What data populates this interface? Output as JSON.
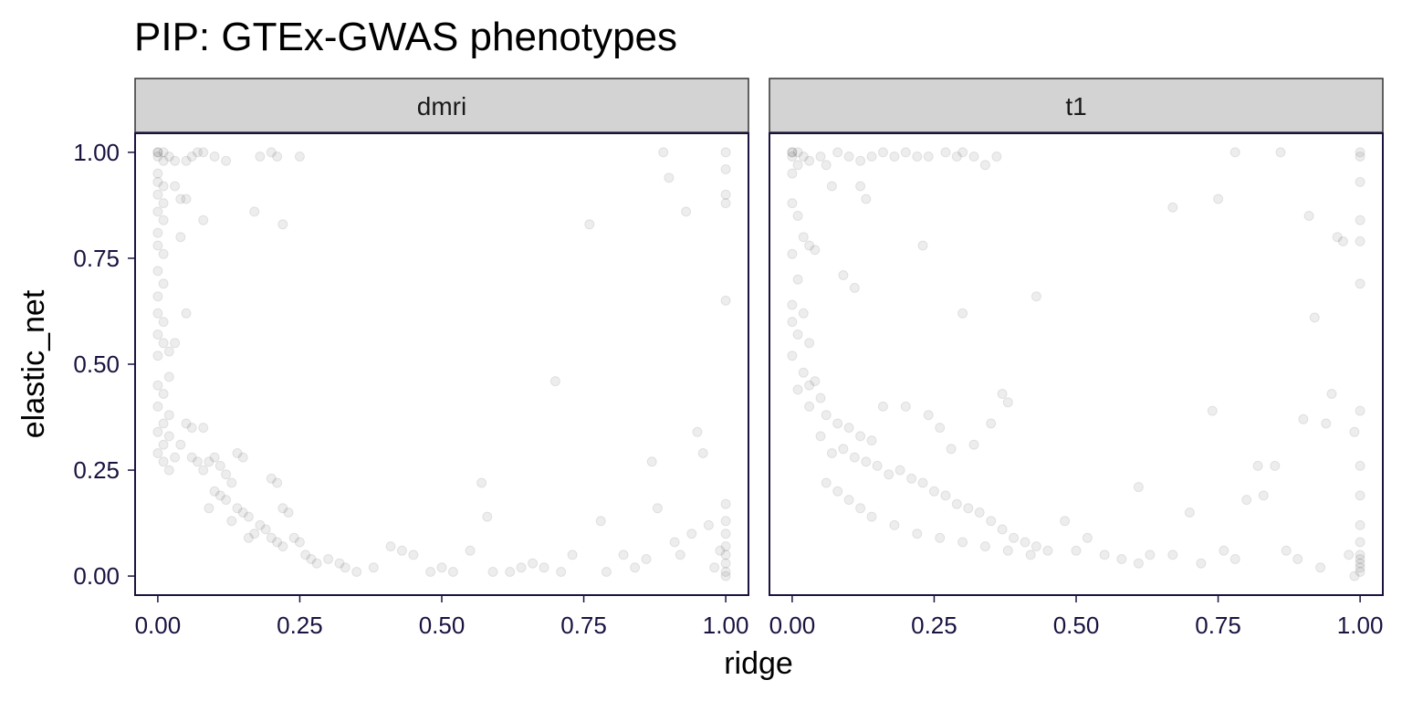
{
  "chart_data": {
    "type": "scatter",
    "title": "PIP: GTEx-GWAS phenotypes",
    "xlabel": "ridge",
    "ylabel": "elastic_net",
    "xlim": [
      -0.04,
      1.04
    ],
    "ylim": [
      -0.045,
      1.045
    ],
    "x_ticks": [
      "0.00",
      "0.25",
      "0.50",
      "0.75",
      "1.00"
    ],
    "y_ticks": [
      "0.00",
      "0.25",
      "0.50",
      "0.75",
      "1.00"
    ],
    "tick_values": [
      0,
      0.25,
      0.5,
      0.75,
      1.0
    ],
    "grid": false,
    "legend": "none",
    "point_color": "#000000",
    "point_alpha": 0.07,
    "panels": [
      {
        "name": "dmri",
        "points": [
          [
            0.0,
            1.0
          ],
          [
            0.0,
            1.0
          ],
          [
            0.01,
            1.0
          ],
          [
            0.0,
            0.99
          ],
          [
            0.01,
            0.98
          ],
          [
            0.0,
            0.95
          ],
          [
            0.0,
            0.93
          ],
          [
            0.01,
            0.92
          ],
          [
            0.0,
            0.9
          ],
          [
            0.01,
            0.88
          ],
          [
            0.0,
            0.86
          ],
          [
            0.01,
            0.84
          ],
          [
            0.0,
            0.81
          ],
          [
            0.0,
            0.78
          ],
          [
            0.01,
            0.76
          ],
          [
            0.0,
            0.72
          ],
          [
            0.01,
            0.69
          ],
          [
            0.0,
            0.66
          ],
          [
            0.0,
            0.62
          ],
          [
            0.01,
            0.6
          ],
          [
            0.0,
            0.57
          ],
          [
            0.01,
            0.55
          ],
          [
            0.0,
            0.52
          ],
          [
            0.02,
            0.53
          ],
          [
            0.03,
            0.55
          ],
          [
            0.02,
            0.47
          ],
          [
            0.0,
            0.45
          ],
          [
            0.01,
            0.43
          ],
          [
            0.0,
            0.4
          ],
          [
            0.02,
            0.38
          ],
          [
            0.01,
            0.36
          ],
          [
            0.0,
            0.34
          ],
          [
            0.02,
            0.33
          ],
          [
            0.01,
            0.31
          ],
          [
            0.0,
            0.29
          ],
          [
            0.03,
            0.28
          ],
          [
            0.01,
            0.27
          ],
          [
            0.02,
            0.25
          ],
          [
            0.05,
            0.36
          ],
          [
            0.04,
            0.31
          ],
          [
            0.06,
            0.28
          ],
          [
            0.07,
            0.27
          ],
          [
            0.08,
            0.25
          ],
          [
            0.09,
            0.27
          ],
          [
            0.1,
            0.28
          ],
          [
            0.11,
            0.26
          ],
          [
            0.12,
            0.24
          ],
          [
            0.14,
            0.29
          ],
          [
            0.15,
            0.28
          ],
          [
            0.13,
            0.22
          ],
          [
            0.1,
            0.2
          ],
          [
            0.11,
            0.19
          ],
          [
            0.12,
            0.18
          ],
          [
            0.09,
            0.16
          ],
          [
            0.14,
            0.16
          ],
          [
            0.15,
            0.15
          ],
          [
            0.16,
            0.14
          ],
          [
            0.13,
            0.13
          ],
          [
            0.2,
            0.23
          ],
          [
            0.21,
            0.22
          ],
          [
            0.22,
            0.16
          ],
          [
            0.23,
            0.15
          ],
          [
            0.18,
            0.12
          ],
          [
            0.19,
            0.11
          ],
          [
            0.17,
            0.1
          ],
          [
            0.2,
            0.09
          ],
          [
            0.21,
            0.08
          ],
          [
            0.16,
            0.09
          ],
          [
            0.24,
            0.09
          ],
          [
            0.25,
            0.08
          ],
          [
            0.22,
            0.07
          ],
          [
            0.26,
            0.05
          ],
          [
            0.27,
            0.04
          ],
          [
            0.28,
            0.03
          ],
          [
            0.3,
            0.04
          ],
          [
            0.32,
            0.03
          ],
          [
            0.33,
            0.02
          ],
          [
            0.35,
            0.01
          ],
          [
            0.38,
            0.02
          ],
          [
            0.41,
            0.07
          ],
          [
            0.43,
            0.06
          ],
          [
            0.45,
            0.05
          ],
          [
            0.48,
            0.01
          ],
          [
            0.5,
            0.02
          ],
          [
            0.52,
            0.01
          ],
          [
            0.55,
            0.06
          ],
          [
            0.57,
            0.22
          ],
          [
            0.58,
            0.14
          ],
          [
            0.59,
            0.01
          ],
          [
            0.62,
            0.01
          ],
          [
            0.64,
            0.02
          ],
          [
            0.66,
            0.03
          ],
          [
            0.68,
            0.02
          ],
          [
            0.7,
            0.46
          ],
          [
            0.71,
            0.01
          ],
          [
            0.73,
            0.05
          ],
          [
            0.76,
            0.83
          ],
          [
            0.78,
            0.13
          ],
          [
            0.79,
            0.01
          ],
          [
            0.82,
            0.05
          ],
          [
            0.84,
            0.02
          ],
          [
            0.86,
            0.04
          ],
          [
            0.87,
            0.27
          ],
          [
            0.88,
            0.16
          ],
          [
            0.89,
            1.0
          ],
          [
            0.9,
            0.94
          ],
          [
            0.91,
            0.08
          ],
          [
            0.92,
            0.05
          ],
          [
            0.93,
            0.86
          ],
          [
            0.94,
            0.1
          ],
          [
            0.95,
            0.34
          ],
          [
            0.96,
            0.29
          ],
          [
            0.97,
            0.12
          ],
          [
            0.98,
            0.02
          ],
          [
            0.99,
            0.06
          ],
          [
            1.0,
            1.0
          ],
          [
            1.0,
            0.96
          ],
          [
            1.0,
            0.9
          ],
          [
            1.0,
            0.88
          ],
          [
            1.0,
            0.65
          ],
          [
            1.0,
            0.17
          ],
          [
            1.0,
            0.13
          ],
          [
            1.0,
            0.1
          ],
          [
            1.0,
            0.07
          ],
          [
            1.0,
            0.05
          ],
          [
            1.0,
            0.03
          ],
          [
            1.0,
            0.01
          ],
          [
            1.0,
            0.0
          ],
          [
            0.02,
            0.99
          ],
          [
            0.03,
            0.98
          ],
          [
            0.05,
            0.98
          ],
          [
            0.06,
            0.99
          ],
          [
            0.07,
            1.0
          ],
          [
            0.08,
            1.0
          ],
          [
            0.1,
            0.99
          ],
          [
            0.12,
            0.98
          ],
          [
            0.18,
            0.99
          ],
          [
            0.2,
            1.0
          ],
          [
            0.21,
            0.99
          ],
          [
            0.25,
            0.99
          ],
          [
            0.03,
            0.92
          ],
          [
            0.04,
            0.89
          ],
          [
            0.05,
            0.89
          ],
          [
            0.08,
            0.84
          ],
          [
            0.17,
            0.86
          ],
          [
            0.22,
            0.83
          ],
          [
            0.04,
            0.8
          ],
          [
            0.05,
            0.62
          ],
          [
            0.06,
            0.35
          ],
          [
            0.08,
            0.35
          ]
        ]
      },
      {
        "name": "t1",
        "points": [
          [
            0.0,
            1.0
          ],
          [
            0.0,
            1.0
          ],
          [
            0.01,
            1.0
          ],
          [
            0.0,
            0.99
          ],
          [
            0.01,
            0.97
          ],
          [
            0.02,
            0.99
          ],
          [
            0.03,
            0.98
          ],
          [
            0.05,
            0.99
          ],
          [
            0.06,
            0.97
          ],
          [
            0.08,
            1.0
          ],
          [
            0.1,
            0.99
          ],
          [
            0.12,
            0.98
          ],
          [
            0.14,
            0.99
          ],
          [
            0.16,
            1.0
          ],
          [
            0.18,
            0.99
          ],
          [
            0.2,
            1.0
          ],
          [
            0.22,
            0.99
          ],
          [
            0.24,
            0.99
          ],
          [
            0.27,
            1.0
          ],
          [
            0.29,
            0.99
          ],
          [
            0.3,
            1.0
          ],
          [
            0.32,
            0.99
          ],
          [
            0.34,
            0.97
          ],
          [
            0.36,
            0.99
          ],
          [
            0.12,
            0.92
          ],
          [
            0.13,
            0.89
          ],
          [
            0.07,
            0.92
          ],
          [
            0.0,
            0.95
          ],
          [
            0.0,
            0.88
          ],
          [
            0.01,
            0.85
          ],
          [
            0.02,
            0.8
          ],
          [
            0.03,
            0.78
          ],
          [
            0.04,
            0.77
          ],
          [
            0.0,
            0.76
          ],
          [
            0.01,
            0.7
          ],
          [
            0.0,
            0.64
          ],
          [
            0.02,
            0.62
          ],
          [
            0.0,
            0.6
          ],
          [
            0.01,
            0.57
          ],
          [
            0.03,
            0.55
          ],
          [
            0.0,
            0.52
          ],
          [
            0.02,
            0.48
          ],
          [
            0.04,
            0.46
          ],
          [
            0.01,
            0.44
          ],
          [
            0.05,
            0.42
          ],
          [
            0.03,
            0.4
          ],
          [
            0.06,
            0.38
          ],
          [
            0.08,
            0.36
          ],
          [
            0.1,
            0.35
          ],
          [
            0.12,
            0.33
          ],
          [
            0.14,
            0.32
          ],
          [
            0.09,
            0.3
          ],
          [
            0.11,
            0.28
          ],
          [
            0.13,
            0.27
          ],
          [
            0.15,
            0.26
          ],
          [
            0.17,
            0.24
          ],
          [
            0.19,
            0.25
          ],
          [
            0.21,
            0.23
          ],
          [
            0.23,
            0.22
          ],
          [
            0.25,
            0.2
          ],
          [
            0.27,
            0.19
          ],
          [
            0.29,
            0.17
          ],
          [
            0.31,
            0.16
          ],
          [
            0.33,
            0.15
          ],
          [
            0.35,
            0.13
          ],
          [
            0.37,
            0.11
          ],
          [
            0.39,
            0.09
          ],
          [
            0.41,
            0.08
          ],
          [
            0.43,
            0.07
          ],
          [
            0.45,
            0.06
          ],
          [
            0.09,
            0.71
          ],
          [
            0.11,
            0.68
          ],
          [
            0.23,
            0.78
          ],
          [
            0.3,
            0.62
          ],
          [
            0.43,
            0.66
          ],
          [
            0.37,
            0.43
          ],
          [
            0.38,
            0.41
          ],
          [
            0.35,
            0.36
          ],
          [
            0.24,
            0.38
          ],
          [
            0.26,
            0.35
          ],
          [
            0.2,
            0.4
          ],
          [
            0.16,
            0.4
          ],
          [
            0.28,
            0.3
          ],
          [
            0.32,
            0.31
          ],
          [
            0.48,
            0.13
          ],
          [
            0.5,
            0.06
          ],
          [
            0.52,
            0.09
          ],
          [
            0.55,
            0.05
          ],
          [
            0.58,
            0.04
          ],
          [
            0.61,
            0.21
          ],
          [
            0.61,
            0.03
          ],
          [
            0.63,
            0.05
          ],
          [
            0.67,
            0.05
          ],
          [
            0.67,
            0.87
          ],
          [
            0.7,
            0.15
          ],
          [
            0.72,
            0.03
          ],
          [
            0.74,
            0.39
          ],
          [
            0.75,
            0.89
          ],
          [
            0.76,
            0.06
          ],
          [
            0.78,
            0.04
          ],
          [
            0.78,
            1.0
          ],
          [
            0.8,
            0.18
          ],
          [
            0.82,
            0.26
          ],
          [
            0.83,
            0.19
          ],
          [
            0.85,
            0.26
          ],
          [
            0.86,
            1.0
          ],
          [
            0.87,
            0.06
          ],
          [
            0.89,
            0.04
          ],
          [
            0.9,
            0.37
          ],
          [
            0.91,
            0.85
          ],
          [
            0.92,
            0.61
          ],
          [
            0.93,
            0.02
          ],
          [
            0.94,
            0.36
          ],
          [
            0.95,
            0.43
          ],
          [
            0.96,
            0.8
          ],
          [
            0.97,
            0.79
          ],
          [
            0.98,
            0.05
          ],
          [
            0.99,
            0.34
          ],
          [
            1.0,
            1.0
          ],
          [
            1.0,
            0.99
          ],
          [
            1.0,
            0.93
          ],
          [
            1.0,
            0.84
          ],
          [
            1.0,
            0.79
          ],
          [
            1.0,
            0.69
          ],
          [
            1.0,
            0.39
          ],
          [
            1.0,
            0.26
          ],
          [
            1.0,
            0.19
          ],
          [
            1.0,
            0.12
          ],
          [
            1.0,
            0.08
          ],
          [
            1.0,
            0.05
          ],
          [
            1.0,
            0.04
          ],
          [
            1.0,
            0.03
          ],
          [
            1.0,
            0.02
          ],
          [
            1.0,
            0.01
          ],
          [
            0.99,
            0.0
          ],
          [
            0.03,
            0.45
          ],
          [
            0.05,
            0.33
          ],
          [
            0.07,
            0.29
          ],
          [
            0.06,
            0.22
          ],
          [
            0.08,
            0.2
          ],
          [
            0.1,
            0.18
          ],
          [
            0.12,
            0.16
          ],
          [
            0.14,
            0.14
          ],
          [
            0.18,
            0.12
          ],
          [
            0.22,
            0.1
          ],
          [
            0.26,
            0.09
          ],
          [
            0.3,
            0.08
          ],
          [
            0.34,
            0.07
          ],
          [
            0.38,
            0.06
          ],
          [
            0.42,
            0.05
          ]
        ]
      }
    ]
  }
}
